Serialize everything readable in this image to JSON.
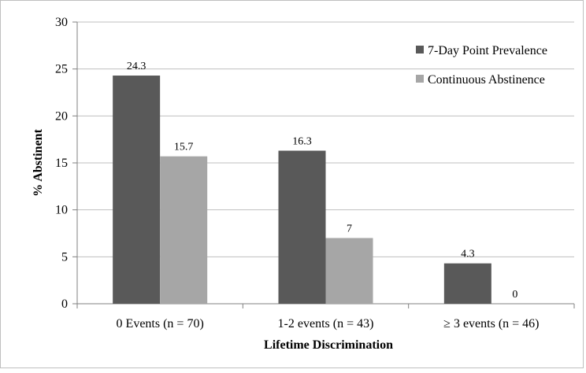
{
  "chart_data": {
    "type": "bar",
    "title": "",
    "xlabel": "Lifetime Discrimination",
    "ylabel": "% Abstinent",
    "ylim": [
      0,
      30
    ],
    "yticks": [
      0,
      5,
      10,
      15,
      20,
      25,
      30
    ],
    "grid": true,
    "legend_position": "top-right",
    "categories": [
      "0 Events (n = 70)",
      "1-2 events (n = 43)",
      "≥ 3 events (n = 46)"
    ],
    "series": [
      {
        "name": "7-Day Point Prevalence",
        "color": "#595959",
        "values": [
          24.3,
          16.3,
          4.3
        ],
        "labels": [
          "24.3",
          "16.3",
          "4.3"
        ]
      },
      {
        "name": "Continuous Abstinence",
        "color": "#a6a6a6",
        "values": [
          15.7,
          7,
          0
        ],
        "labels": [
          "15.7",
          "7",
          "0"
        ]
      }
    ]
  }
}
